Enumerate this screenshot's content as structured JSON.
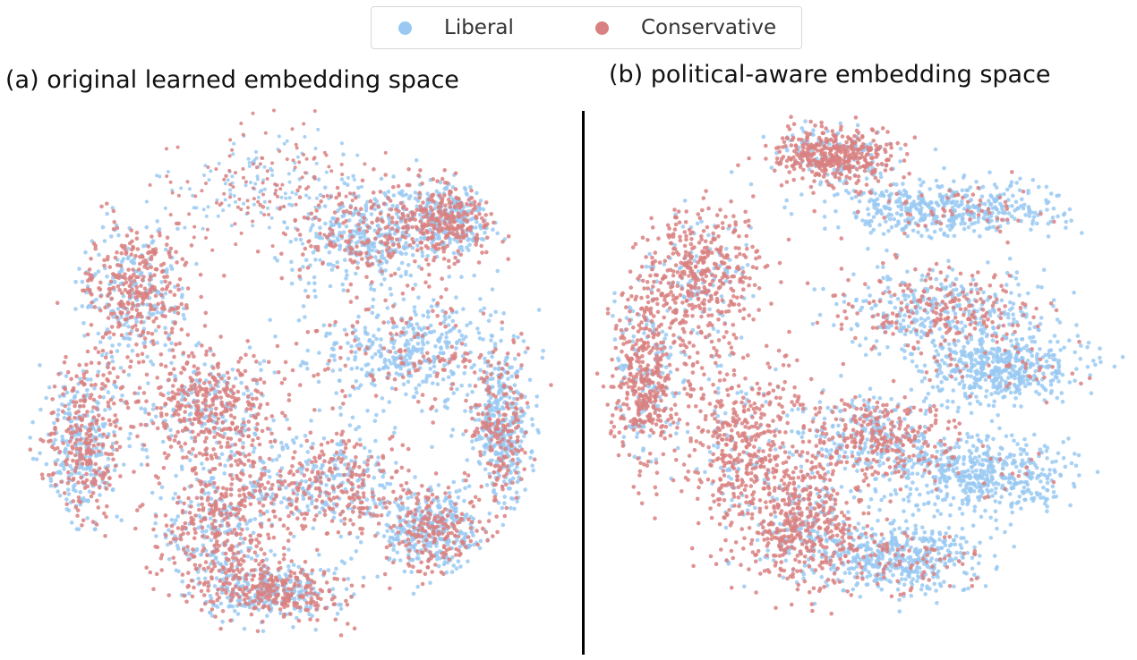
{
  "legend": {
    "items": [
      {
        "label": "Liberal",
        "color": "#99c9f2"
      },
      {
        "label": "Conservative",
        "color": "#d98080"
      }
    ]
  },
  "chart_data": [
    {
      "type": "scatter",
      "title": "(a) original learned embedding space",
      "xlabel": "",
      "ylabel": "",
      "grid": false,
      "legend_position": "top-center",
      "series": [
        {
          "name": "Liberal",
          "color": "#99c9f2"
        },
        {
          "name": "Conservative",
          "color": "#d98080"
        }
      ],
      "clusters": [
        {
          "cx": -0.05,
          "cy": 0.7,
          "rx": 0.4,
          "ry": 0.26,
          "lib": 0.55,
          "sparse": true
        },
        {
          "cx": 0.3,
          "cy": 0.52,
          "rx": 0.3,
          "ry": 0.22,
          "lib": 0.6
        },
        {
          "cx": 0.6,
          "cy": 0.58,
          "rx": 0.2,
          "ry": 0.15,
          "lib": 0.55
        },
        {
          "cx": -0.55,
          "cy": 0.3,
          "rx": 0.22,
          "ry": 0.3,
          "lib": 0.45
        },
        {
          "cx": 0.45,
          "cy": 0.08,
          "rx": 0.42,
          "ry": 0.22,
          "lib": 0.72
        },
        {
          "cx": -0.3,
          "cy": -0.12,
          "rx": 0.3,
          "ry": 0.22,
          "lib": 0.3
        },
        {
          "cx": 0.15,
          "cy": -0.4,
          "rx": 0.35,
          "ry": 0.22,
          "lib": 0.45
        },
        {
          "cx": -0.25,
          "cy": -0.55,
          "rx": 0.25,
          "ry": 0.3,
          "lib": 0.4
        },
        {
          "cx": 0.55,
          "cy": -0.58,
          "rx": 0.22,
          "ry": 0.18,
          "lib": 0.58
        },
        {
          "cx": -0.75,
          "cy": -0.25,
          "rx": 0.15,
          "ry": 0.35,
          "lib": 0.5
        },
        {
          "cx": 0.8,
          "cy": -0.2,
          "rx": 0.12,
          "ry": 0.3,
          "lib": 0.62
        },
        {
          "cx": -0.05,
          "cy": -0.8,
          "rx": 0.3,
          "ry": 0.12,
          "lib": 0.5
        }
      ]
    },
    {
      "type": "scatter",
      "title": "(b) political-aware embedding space",
      "xlabel": "",
      "ylabel": "",
      "grid": false,
      "legend_position": "top-center",
      "series": [
        {
          "name": "Liberal",
          "color": "#99c9f2"
        },
        {
          "name": "Conservative",
          "color": "#d98080"
        }
      ],
      "clusters": [
        {
          "cx": -0.1,
          "cy": 0.8,
          "rx": 0.25,
          "ry": 0.12,
          "lib": 0.25
        },
        {
          "cx": 0.35,
          "cy": 0.6,
          "rx": 0.5,
          "ry": 0.12,
          "lib": 0.88
        },
        {
          "cx": -0.6,
          "cy": 0.35,
          "rx": 0.25,
          "ry": 0.3,
          "lib": 0.2
        },
        {
          "cx": 0.3,
          "cy": 0.22,
          "rx": 0.45,
          "ry": 0.18,
          "lib": 0.62
        },
        {
          "cx": 0.55,
          "cy": 0.0,
          "rx": 0.35,
          "ry": 0.15,
          "lib": 0.92
        },
        {
          "cx": -0.8,
          "cy": -0.05,
          "rx": 0.14,
          "ry": 0.35,
          "lib": 0.3
        },
        {
          "cx": -0.45,
          "cy": -0.3,
          "rx": 0.25,
          "ry": 0.4,
          "lib": 0.15
        },
        {
          "cx": 0.05,
          "cy": -0.25,
          "rx": 0.35,
          "ry": 0.18,
          "lib": 0.45
        },
        {
          "cx": 0.45,
          "cy": -0.4,
          "rx": 0.4,
          "ry": 0.15,
          "lib": 0.95
        },
        {
          "cx": 0.15,
          "cy": -0.72,
          "rx": 0.35,
          "ry": 0.15,
          "lib": 0.85
        },
        {
          "cx": -0.2,
          "cy": -0.6,
          "rx": 0.25,
          "ry": 0.25,
          "lib": 0.3
        }
      ]
    }
  ]
}
